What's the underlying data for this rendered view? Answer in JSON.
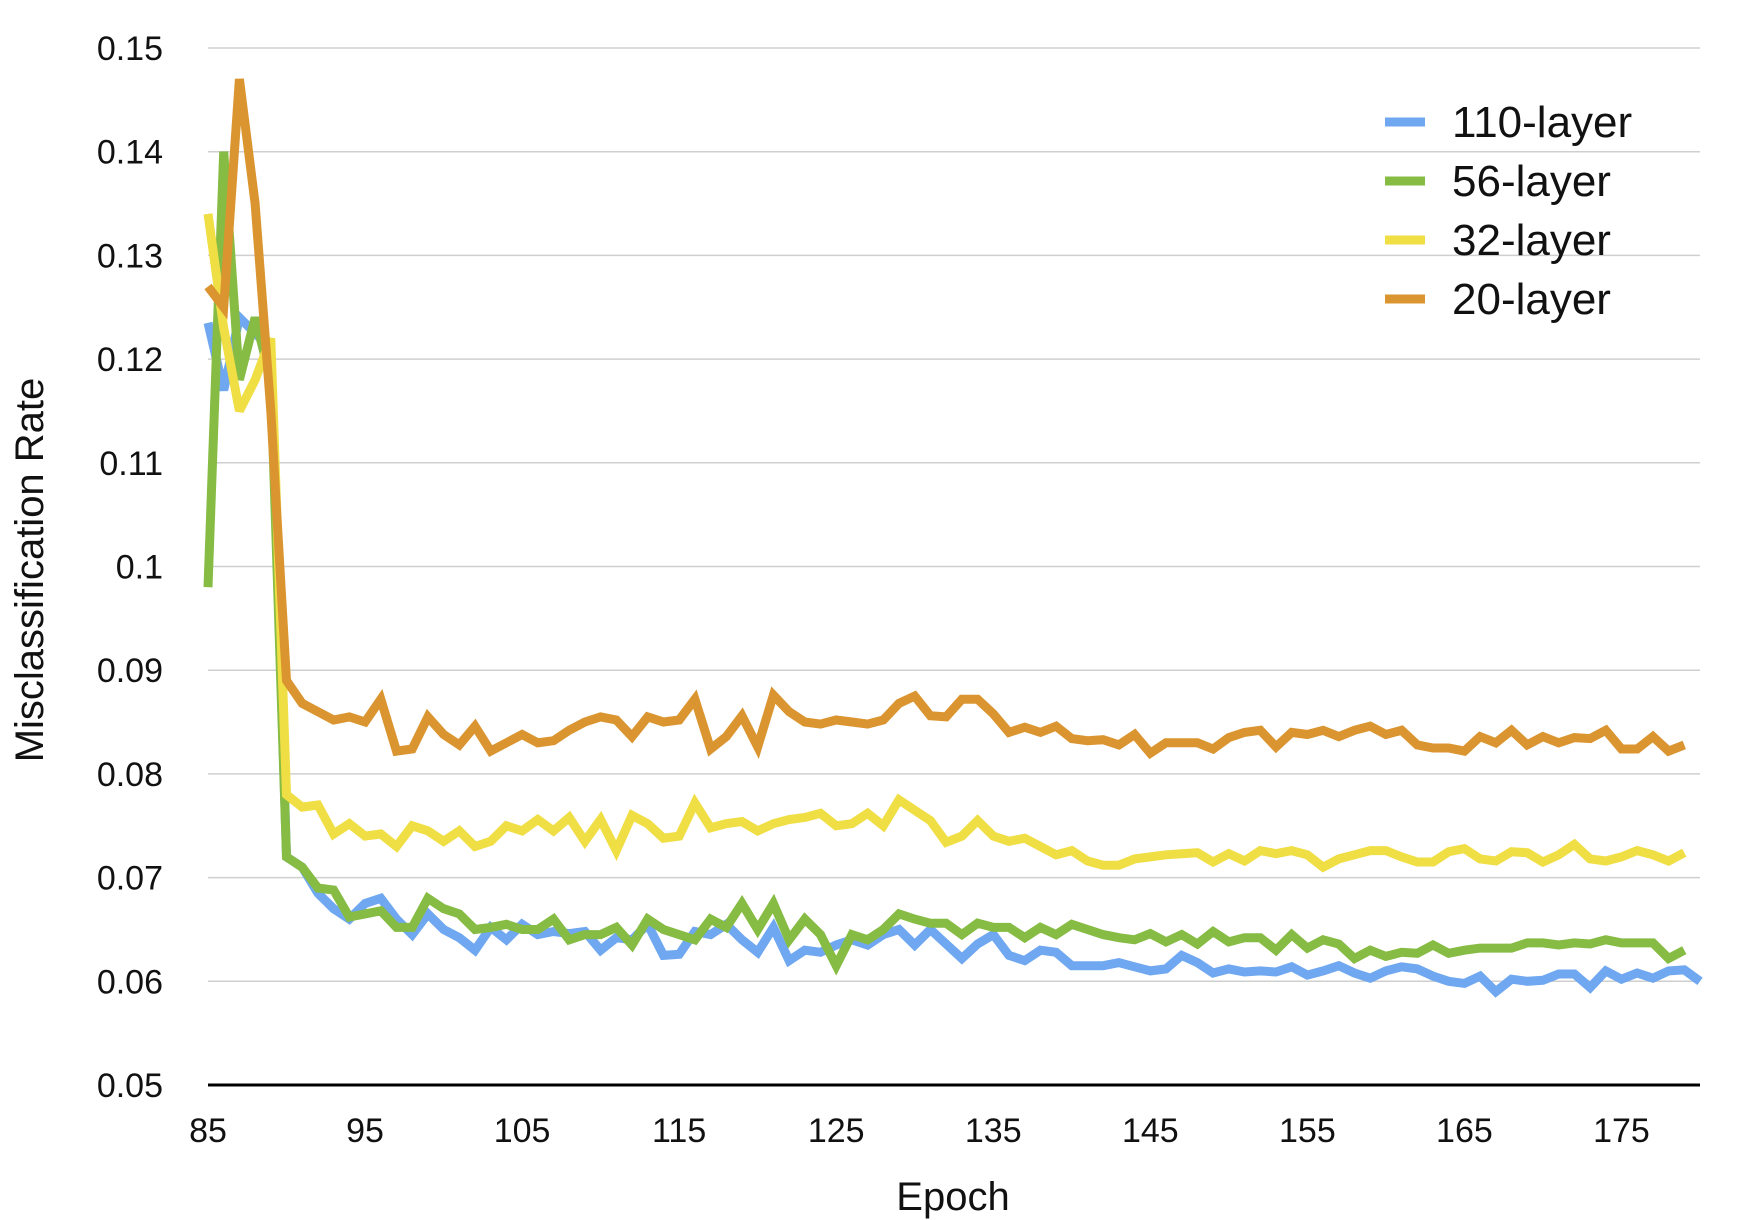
{
  "chart_data": {
    "type": "line",
    "xlabel": "Epoch",
    "ylabel": "Misclassification Rate",
    "xlim": [
      85,
      180
    ],
    "ylim": [
      0.05,
      0.15
    ],
    "xticks": [
      "85",
      "95",
      "105",
      "115",
      "125",
      "135",
      "145",
      "155",
      "165",
      "175"
    ],
    "xtick_values": [
      85,
      95,
      105,
      115,
      125,
      135,
      145,
      155,
      165,
      175
    ],
    "yticks": [
      "0.05",
      "0.06",
      "0.07",
      "0.08",
      "0.09",
      "0.1",
      "0.11",
      "0.12",
      "0.13",
      "0.14",
      "0.15"
    ],
    "ytick_values": [
      0.05,
      0.06,
      0.07,
      0.08,
      0.09,
      0.1,
      0.11,
      0.12,
      0.13,
      0.14,
      0.15
    ],
    "grid": "horizontal",
    "legend_position": "top-right",
    "x_start": 85,
    "series": [
      {
        "name": "110-layer",
        "color": "#6fa8f0",
        "values": [
          0.1235,
          0.117,
          0.124,
          0.1225,
          0.121,
          0.072,
          0.071,
          0.0685,
          0.067,
          0.066,
          0.0675,
          0.068,
          0.066,
          0.0645,
          0.0665,
          0.065,
          0.0642,
          0.063,
          0.0652,
          0.064,
          0.0655,
          0.0645,
          0.0648,
          0.0646,
          0.0648,
          0.063,
          0.0642,
          0.064,
          0.0655,
          0.0625,
          0.0626,
          0.0648,
          0.0645,
          0.0655,
          0.064,
          0.0628,
          0.0652,
          0.062,
          0.063,
          0.0628,
          0.0635,
          0.064,
          0.0635,
          0.0645,
          0.065,
          0.0635,
          0.065,
          0.0636,
          0.0622,
          0.0636,
          0.0645,
          0.0625,
          0.062,
          0.063,
          0.0628,
          0.0615,
          0.0615,
          0.0615,
          0.0618,
          0.0614,
          0.061,
          0.0612,
          0.0625,
          0.0618,
          0.0608,
          0.0612,
          0.0609,
          0.061,
          0.0609,
          0.0614,
          0.0606,
          0.061,
          0.0615,
          0.0608,
          0.0603,
          0.061,
          0.0614,
          0.0612,
          0.0605,
          0.06,
          0.0598,
          0.0605,
          0.059,
          0.0602,
          0.06,
          0.0601,
          0.0607,
          0.0607,
          0.0594,
          0.061,
          0.0602,
          0.0608,
          0.0603,
          0.061,
          0.0611,
          0.06
        ]
      },
      {
        "name": "56-layer",
        "color": "#86bc43",
        "values": [
          0.098,
          0.14,
          0.118,
          0.124,
          0.118,
          0.072,
          0.071,
          0.069,
          0.0688,
          0.0662,
          0.0665,
          0.0668,
          0.0652,
          0.0652,
          0.068,
          0.067,
          0.0665,
          0.065,
          0.0652,
          0.0655,
          0.065,
          0.065,
          0.066,
          0.064,
          0.0645,
          0.0645,
          0.0652,
          0.0635,
          0.066,
          0.065,
          0.0645,
          0.064,
          0.066,
          0.0652,
          0.0675,
          0.065,
          0.0675,
          0.064,
          0.066,
          0.0645,
          0.0615,
          0.0645,
          0.064,
          0.065,
          0.0665,
          0.066,
          0.0656,
          0.0656,
          0.0645,
          0.0656,
          0.0652,
          0.0652,
          0.0642,
          0.0652,
          0.0645,
          0.0655,
          0.065,
          0.0645,
          0.0642,
          0.064,
          0.0646,
          0.0638,
          0.0645,
          0.0636,
          0.0648,
          0.0638,
          0.0642,
          0.0642,
          0.063,
          0.0645,
          0.0632,
          0.064,
          0.0636,
          0.0622,
          0.063,
          0.0624,
          0.0628,
          0.0627,
          0.0635,
          0.0627,
          0.063,
          0.0632,
          0.0632,
          0.0632,
          0.0637,
          0.0637,
          0.0635,
          0.0637,
          0.0636,
          0.064,
          0.0637,
          0.0637,
          0.0637,
          0.0622,
          0.063
        ]
      },
      {
        "name": "32-layer",
        "color": "#f0de45",
        "values": [
          0.134,
          0.123,
          0.115,
          0.118,
          0.122,
          0.078,
          0.0768,
          0.077,
          0.0742,
          0.0752,
          0.074,
          0.0742,
          0.073,
          0.075,
          0.0745,
          0.0735,
          0.0745,
          0.073,
          0.0735,
          0.075,
          0.0745,
          0.0756,
          0.0745,
          0.0758,
          0.0735,
          0.0756,
          0.0726,
          0.076,
          0.0752,
          0.0738,
          0.074,
          0.0772,
          0.0748,
          0.0752,
          0.0754,
          0.0745,
          0.0752,
          0.0756,
          0.0758,
          0.0762,
          0.075,
          0.0752,
          0.0762,
          0.075,
          0.0775,
          0.0765,
          0.0755,
          0.0734,
          0.074,
          0.0755,
          0.074,
          0.0735,
          0.0738,
          0.073,
          0.0722,
          0.0726,
          0.0716,
          0.0712,
          0.0712,
          0.0718,
          0.072,
          0.0722,
          0.0723,
          0.0724,
          0.0715,
          0.0723,
          0.0716,
          0.0726,
          0.0723,
          0.0726,
          0.0722,
          0.071,
          0.0718,
          0.0722,
          0.0726,
          0.0726,
          0.072,
          0.0715,
          0.0715,
          0.0725,
          0.0728,
          0.0718,
          0.0716,
          0.0725,
          0.0724,
          0.0715,
          0.0722,
          0.0732,
          0.0718,
          0.0716,
          0.072,
          0.0726,
          0.0722,
          0.0716,
          0.0724
        ]
      },
      {
        "name": "20-layer",
        "color": "#db9530",
        "values": [
          0.127,
          0.125,
          0.147,
          0.135,
          0.115,
          0.089,
          0.0868,
          0.086,
          0.0852,
          0.0855,
          0.085,
          0.0872,
          0.0822,
          0.0824,
          0.0855,
          0.0838,
          0.0828,
          0.0846,
          0.0822,
          0.083,
          0.0838,
          0.083,
          0.0832,
          0.0842,
          0.085,
          0.0855,
          0.0852,
          0.0836,
          0.0855,
          0.085,
          0.0852,
          0.0872,
          0.0824,
          0.0836,
          0.0856,
          0.0826,
          0.0876,
          0.086,
          0.085,
          0.0848,
          0.0852,
          0.085,
          0.0848,
          0.0852,
          0.0868,
          0.0875,
          0.0856,
          0.0855,
          0.0872,
          0.0872,
          0.0858,
          0.084,
          0.0845,
          0.084,
          0.0846,
          0.0834,
          0.0832,
          0.0833,
          0.0828,
          0.0838,
          0.082,
          0.083,
          0.083,
          0.083,
          0.0824,
          0.0835,
          0.084,
          0.0842,
          0.0826,
          0.084,
          0.0838,
          0.0842,
          0.0836,
          0.0842,
          0.0846,
          0.0838,
          0.0842,
          0.0828,
          0.0825,
          0.0825,
          0.0822,
          0.0836,
          0.083,
          0.0842,
          0.0828,
          0.0836,
          0.083,
          0.0835,
          0.0834,
          0.0842,
          0.0824,
          0.0824,
          0.0836,
          0.0822,
          0.0828
        ]
      }
    ]
  }
}
